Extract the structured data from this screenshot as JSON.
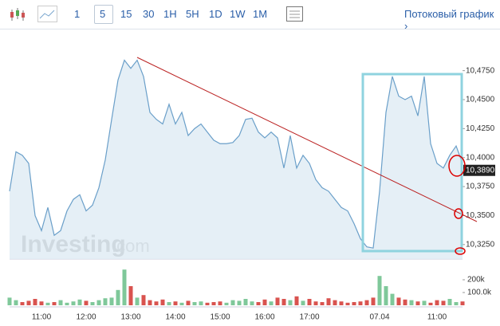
{
  "toolbar": {
    "intervals": [
      "1",
      "5",
      "15",
      "30",
      "1H",
      "5H",
      "1D",
      "1W",
      "1M"
    ],
    "streaming": "Потоковый график ›"
  },
  "watermark": {
    "brand": "Investing",
    "domain": ".com"
  },
  "chart_data": {
    "type": "area",
    "color": "#6a9fc9",
    "fill": "#e1ecf5",
    "categories": [
      null,
      null,
      null,
      null,
      null,
      "11:00",
      null,
      null,
      null,
      null,
      null,
      null,
      "12:00",
      null,
      null,
      null,
      null,
      null,
      null,
      "13:00",
      null,
      null,
      null,
      null,
      null,
      null,
      "14:00",
      null,
      null,
      null,
      null,
      null,
      null,
      "15:00",
      null,
      null,
      null,
      null,
      null,
      null,
      "16:00",
      null,
      null,
      null,
      null,
      null,
      null,
      "17:00",
      null,
      null,
      null,
      null,
      null,
      null,
      null,
      null,
      null,
      null,
      "07.04",
      null,
      null,
      null,
      null,
      null,
      null,
      null,
      null,
      "11:00",
      null,
      null,
      null,
      null
    ],
    "values": [
      10.371,
      10.405,
      10.402,
      10.395,
      10.35,
      10.337,
      10.357,
      10.333,
      10.337,
      10.354,
      10.364,
      10.368,
      10.354,
      10.359,
      10.374,
      10.398,
      10.433,
      10.467,
      10.484,
      10.477,
      10.484,
      10.47,
      10.439,
      10.433,
      10.429,
      10.446,
      10.429,
      10.439,
      10.419,
      10.425,
      10.429,
      10.422,
      10.415,
      10.412,
      10.412,
      10.413,
      10.419,
      10.433,
      10.434,
      10.422,
      10.417,
      10.422,
      10.417,
      10.391,
      10.419,
      10.391,
      10.402,
      10.395,
      10.381,
      10.374,
      10.371,
      10.364,
      10.357,
      10.354,
      10.343,
      10.33,
      10.323,
      10.322,
      10.371,
      10.439,
      10.47,
      10.453,
      10.45,
      10.453,
      10.436,
      10.47,
      10.412,
      10.395,
      10.391,
      10.402,
      10.41,
      10.395
    ],
    "ylim": [
      10.3125,
      10.505
    ],
    "yticks": [
      {
        "value": 10.325,
        "label": "10,3250"
      },
      {
        "value": 10.35,
        "label": "10,3500"
      },
      {
        "value": 10.375,
        "label": "10,3750"
      },
      {
        "value": 10.4,
        "label": "10,4000"
      },
      {
        "value": 10.425,
        "label": "10,4250"
      },
      {
        "value": 10.45,
        "label": "10,4500"
      },
      {
        "value": 10.475,
        "label": "10,4750"
      }
    ],
    "last_value": {
      "value": 10.389,
      "label": "10,3890"
    },
    "volume": {
      "up_color": "#7fc89a",
      "down_color": "#d9534f",
      "ylim": [
        0,
        300000
      ],
      "yticks": [
        {
          "value": 100000,
          "label": "100.0k"
        },
        {
          "value": 200000,
          "label": "200k"
        }
      ],
      "values": [
        60000,
        40000,
        25000,
        35000,
        50000,
        30000,
        20000,
        25000,
        40000,
        20000,
        30000,
        45000,
        35000,
        25000,
        40000,
        55000,
        60000,
        120000,
        280000,
        150000,
        60000,
        80000,
        40000,
        30000,
        45000,
        25000,
        30000,
        20000,
        35000,
        25000,
        30000,
        20000,
        25000,
        30000,
        20000,
        40000,
        35000,
        50000,
        30000,
        25000,
        45000,
        30000,
        60000,
        50000,
        40000,
        70000,
        35000,
        50000,
        30000,
        25000,
        55000,
        40000,
        30000,
        20000,
        25000,
        30000,
        40000,
        60000,
        230000,
        150000,
        90000,
        60000,
        45000,
        40000,
        30000,
        35000,
        20000,
        40000,
        35000,
        50000,
        25000,
        30000
      ]
    }
  }
}
